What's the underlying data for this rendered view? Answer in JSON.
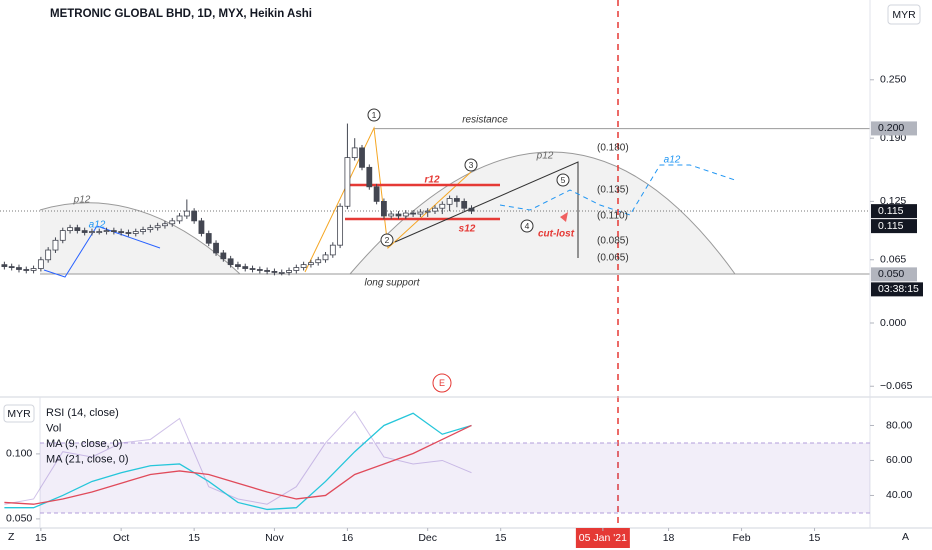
{
  "chart_data": [
    {
      "type": "candlestick",
      "title": "METRONIC GLOBAL BHD, 1D, MYX, Heikin Ashi",
      "currency": "MYR",
      "x": [
        0,
        1,
        2,
        3,
        4,
        5,
        6,
        7,
        8,
        9,
        10,
        11,
        12,
        13,
        14,
        15,
        16,
        17,
        18,
        19,
        20,
        21,
        22,
        23,
        24,
        25,
        26,
        27,
        28,
        29,
        30,
        31,
        32,
        33,
        34,
        35,
        36,
        37,
        38,
        39,
        40,
        41,
        42,
        43,
        44,
        45,
        46,
        47,
        48,
        49,
        50,
        51,
        52,
        53,
        54,
        55,
        56,
        57,
        58,
        59,
        60,
        61,
        62,
        63,
        64
      ],
      "open": [
        0.06,
        0.058,
        0.057,
        0.055,
        0.054,
        0.056,
        0.065,
        0.075,
        0.085,
        0.095,
        0.098,
        0.095,
        0.093,
        0.094,
        0.094,
        0.095,
        0.094,
        0.093,
        0.092,
        0.094,
        0.096,
        0.098,
        0.1,
        0.102,
        0.105,
        0.11,
        0.115,
        0.105,
        0.092,
        0.082,
        0.072,
        0.066,
        0.06,
        0.058,
        0.056,
        0.055,
        0.054,
        0.053,
        0.052,
        0.052,
        0.054,
        0.057,
        0.06,
        0.062,
        0.065,
        0.07,
        0.08,
        0.12,
        0.17,
        0.18,
        0.16,
        0.14,
        0.125,
        0.11,
        0.112,
        0.11,
        0.113,
        0.112,
        0.114,
        0.115,
        0.118,
        0.122,
        0.128,
        0.125,
        0.118
      ],
      "high": [
        0.063,
        0.061,
        0.06,
        0.058,
        0.059,
        0.068,
        0.078,
        0.088,
        0.098,
        0.101,
        0.101,
        0.098,
        0.097,
        0.097,
        0.098,
        0.098,
        0.097,
        0.096,
        0.097,
        0.099,
        0.101,
        0.103,
        0.105,
        0.108,
        0.113,
        0.127,
        0.118,
        0.108,
        0.095,
        0.085,
        0.075,
        0.069,
        0.063,
        0.061,
        0.059,
        0.058,
        0.057,
        0.056,
        0.055,
        0.057,
        0.06,
        0.063,
        0.065,
        0.068,
        0.073,
        0.083,
        0.123,
        0.205,
        0.19,
        0.183,
        0.163,
        0.143,
        0.128,
        0.115,
        0.115,
        0.116,
        0.116,
        0.117,
        0.118,
        0.121,
        0.125,
        0.131,
        0.131,
        0.128,
        0.121
      ],
      "low": [
        0.055,
        0.054,
        0.052,
        0.051,
        0.051,
        0.053,
        0.062,
        0.072,
        0.082,
        0.092,
        0.092,
        0.09,
        0.09,
        0.091,
        0.091,
        0.091,
        0.09,
        0.089,
        0.089,
        0.091,
        0.093,
        0.095,
        0.097,
        0.099,
        0.102,
        0.107,
        0.102,
        0.089,
        0.079,
        0.069,
        0.063,
        0.057,
        0.055,
        0.053,
        0.052,
        0.051,
        0.05,
        0.049,
        0.049,
        0.049,
        0.051,
        0.054,
        0.057,
        0.059,
        0.062,
        0.067,
        0.077,
        0.117,
        0.167,
        0.157,
        0.137,
        0.122,
        0.107,
        0.107,
        0.107,
        0.107,
        0.109,
        0.109,
        0.109,
        0.112,
        0.112,
        0.115,
        0.119,
        0.115,
        0.112
      ],
      "close": [
        0.058,
        0.057,
        0.055,
        0.054,
        0.056,
        0.065,
        0.075,
        0.085,
        0.095,
        0.098,
        0.095,
        0.093,
        0.094,
        0.094,
        0.095,
        0.094,
        0.093,
        0.092,
        0.094,
        0.096,
        0.098,
        0.1,
        0.102,
        0.105,
        0.11,
        0.115,
        0.105,
        0.092,
        0.082,
        0.072,
        0.066,
        0.06,
        0.058,
        0.056,
        0.055,
        0.054,
        0.053,
        0.052,
        0.052,
        0.054,
        0.057,
        0.06,
        0.062,
        0.065,
        0.07,
        0.08,
        0.12,
        0.17,
        0.18,
        0.16,
        0.14,
        0.125,
        0.11,
        0.112,
        0.11,
        0.113,
        0.112,
        0.114,
        0.115,
        0.118,
        0.122,
        0.128,
        0.125,
        0.118,
        0.115
      ],
      "up_color": "#ffffff",
      "down_color": "#434651",
      "ylim": [
        -0.074,
        0.332
      ],
      "yticks": [
        {
          "value": 0.25,
          "label": "0.250"
        },
        {
          "value": 0.19,
          "label": "0.190"
        },
        {
          "value": 0.125,
          "label": "0.125"
        },
        {
          "value": 0.065,
          "label": "0.065"
        },
        {
          "value": 0,
          "label": "0.000"
        },
        {
          "value": -0.065,
          "label": "−0.065"
        }
      ],
      "xlim": [
        -0.6,
        118.6
      ],
      "xticks": [
        {
          "value": 5,
          "label": "15"
        },
        {
          "value": 16,
          "label": "Oct"
        },
        {
          "value": 26,
          "label": "15"
        },
        {
          "value": 37,
          "label": "Nov"
        },
        {
          "value": 47,
          "label": "16"
        },
        {
          "value": 58,
          "label": "Dec"
        },
        {
          "value": 68,
          "label": "15"
        },
        {
          "value": 82,
          "label": "05 Jan '21"
        },
        {
          "value": 91,
          "label": "18"
        },
        {
          "value": 101,
          "label": "Feb"
        },
        {
          "value": 111,
          "label": "15"
        }
      ],
      "highlight_xtick": 7,
      "price_tags": [
        {
          "value": 0.2,
          "label": "0.200",
          "color": "#b2b5be"
        },
        {
          "value": 0.115,
          "label": "0.115",
          "color": "#131722"
        },
        {
          "value": 0.115,
          "label": "0.115",
          "color": "#131722"
        },
        {
          "value": 0.05,
          "label": "0.050",
          "color": "#b2b5be"
        }
      ],
      "countdown": "03:38:15",
      "annotations": [
        "1",
        "resistance",
        "p12",
        "p12",
        "a12",
        "a12",
        "2",
        "3",
        "r12",
        "s12",
        "(0.180)",
        "(0.135)",
        "(0.110)",
        "(0.085)",
        "(0.065)",
        "5",
        "4",
        "cut-lost",
        "long support",
        "E"
      ]
    },
    {
      "type": "line",
      "legend": [
        "RSI (14, close)",
        "Vol",
        "MA (9, close, 0)",
        "MA (21, close, 0)"
      ],
      "currency": "MYR",
      "x": [
        0,
        4,
        8,
        12,
        16,
        20,
        24,
        28,
        32,
        36,
        40,
        44,
        48,
        52,
        56,
        60,
        64
      ],
      "series": [
        {
          "name": "RSI (14, close)",
          "color": "rgba(149,117,205,0.45)",
          "values": [
            35,
            38,
            65,
            62,
            70,
            72,
            84,
            45,
            38,
            35,
            45,
            70,
            88,
            62,
            58,
            60,
            53
          ]
        },
        {
          "name": "MA (9, close, 0)",
          "color": "#26c6da",
          "values": [
            33,
            33,
            40,
            48,
            53,
            57,
            58,
            48,
            36,
            32,
            33,
            48,
            65,
            80,
            87,
            75,
            80
          ]
        },
        {
          "name": "MA (21, close, 0)",
          "color": "#e04a5a",
          "values": [
            36,
            35,
            38,
            42,
            47,
            52,
            54,
            52,
            47,
            42,
            38,
            40,
            52,
            58,
            64,
            72,
            80
          ]
        }
      ],
      "band": [
        30,
        70
      ],
      "ylim": [
        21.4,
        95.7
      ],
      "yticks": [
        {
          "value": 80,
          "label": "80.00"
        },
        {
          "value": 60,
          "label": "60.00"
        },
        {
          "value": 40,
          "label": "40.00"
        }
      ],
      "y2lim": [
        0.043,
        0.143
      ],
      "y2ticks": [
        {
          "value": 0.1,
          "label": "0.100"
        },
        {
          "value": 0.05,
          "label": "0.050"
        }
      ]
    }
  ],
  "ui": {
    "left_button": "Z",
    "right_button": "A"
  }
}
